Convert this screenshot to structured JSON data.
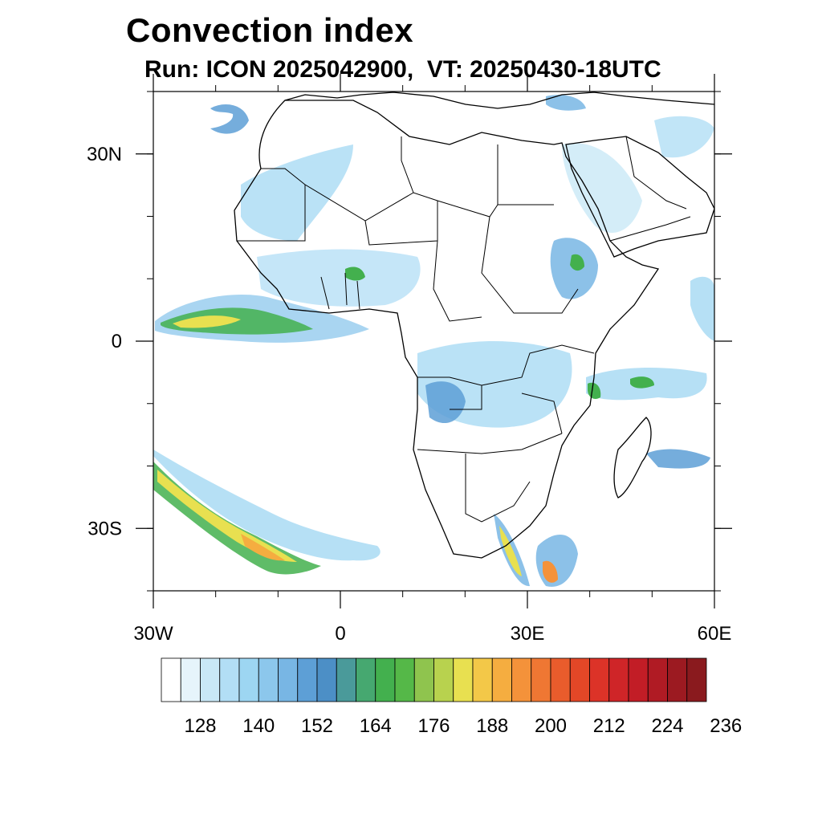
{
  "title": "Convection index",
  "subtitle": "Run: ICON 2025042900,  VT: 20250430-18UTC",
  "map": {
    "lon_range": [
      -30,
      60
    ],
    "lat_range": [
      -40,
      40
    ],
    "lat_ticks": [
      {
        "value": 30,
        "label": "30N"
      },
      {
        "value": 0,
        "label": "0"
      },
      {
        "value": -30,
        "label": "30S"
      }
    ],
    "lon_ticks": [
      {
        "value": -30,
        "label": "30W"
      },
      {
        "value": 0,
        "label": "0"
      },
      {
        "value": 30,
        "label": "30E"
      },
      {
        "value": 60,
        "label": "60E"
      }
    ],
    "minor_lon_step": 10,
    "minor_lat_step": 10
  },
  "colorbar": {
    "labels": [
      "128",
      "140",
      "152",
      "164",
      "176",
      "188",
      "200",
      "212",
      "224",
      "236"
    ],
    "colors": [
      "#ffffff",
      "#e6f4fb",
      "#c9e8f6",
      "#b2def5",
      "#9dd6f2",
      "#8cc7ec",
      "#78b6e4",
      "#5d9fd6",
      "#4c8fc6",
      "#4a9a9a",
      "#46a870",
      "#43b04e",
      "#55b848",
      "#8fc44e",
      "#b8d24e",
      "#e8e050",
      "#f3c848",
      "#f5ad40",
      "#f4923a",
      "#ef7733",
      "#e95c2c",
      "#e34727",
      "#dc3328",
      "#cf2528",
      "#c21d26",
      "#b01b24",
      "#9c1a21",
      "#8a1a1e"
    ]
  }
}
